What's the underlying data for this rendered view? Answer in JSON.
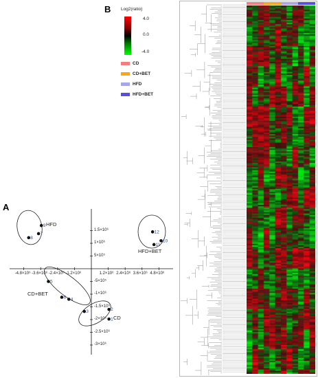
{
  "panel_a": {
    "letter": "A",
    "x_ticks": [
      "-4.8×10⁶",
      "-3.6×10⁶",
      "-2.4×10⁶",
      "-1.2×10⁶",
      "1.2×10⁶",
      "2.4×10⁶",
      "3.6×10⁶",
      "4.8×10⁶"
    ],
    "y_ticks_pos": [
      "1.5×10⁶",
      "1×10⁶",
      "5×10⁵"
    ],
    "y_ticks_neg": [
      "-5×10⁵",
      "-1×10⁶",
      "-1.5×10⁶",
      "-2×10⁶",
      "-2.5×10⁶",
      "-3×10⁶"
    ],
    "groups": [
      {
        "label": "HFD"
      },
      {
        "label": "HFD+BET"
      },
      {
        "label": "CD+BET"
      },
      {
        "label": "CD"
      }
    ],
    "samples": [
      {
        "id": "9",
        "x": -3.55,
        "y": 1.7
      },
      {
        "id": "7",
        "x": -3.75,
        "y": 1.38
      },
      {
        "id": "8",
        "x": -4.45,
        "y": 1.22
      },
      {
        "id": "12",
        "x": 4.35,
        "y": 1.45
      },
      {
        "id": "10",
        "x": 4.95,
        "y": 1.1
      },
      {
        "id": "11",
        "x": 4.45,
        "y": 0.95
      },
      {
        "id": "5",
        "x": -3.05,
        "y": -0.5
      },
      {
        "id": "6",
        "x": -2.1,
        "y": -1.12
      },
      {
        "id": "4",
        "x": -1.6,
        "y": -1.2
      },
      {
        "id": "3",
        "x": -0.5,
        "y": -1.68
      },
      {
        "id": "2",
        "x": 1.25,
        "y": -1.6
      },
      {
        "id": "1",
        "x": 1.25,
        "y": -1.98
      }
    ]
  },
  "panel_b": {
    "letter": "B",
    "scale_title": "Log2(ratio)",
    "scale_max": "4.0",
    "scale_mid": "0.0",
    "scale_min": "-4.0",
    "legend": [
      {
        "label": "CD",
        "color": "#f08080"
      },
      {
        "label": "CD+BET",
        "color": "#f5a623"
      },
      {
        "label": "HFD",
        "color": "#a9a6e8"
      },
      {
        "label": "HFD+BET",
        "color": "#5a4fd8"
      }
    ]
  }
}
